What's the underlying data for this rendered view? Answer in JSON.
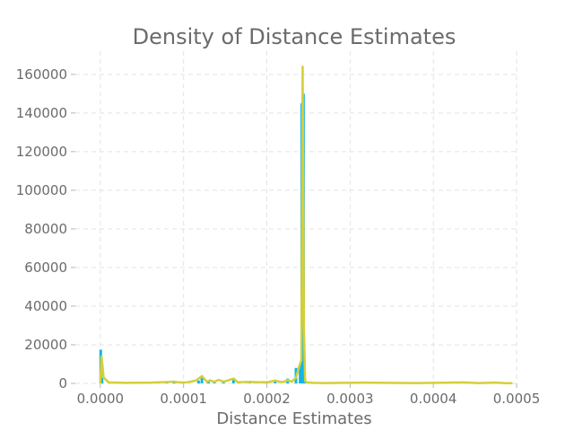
{
  "chart_data": {
    "type": "area",
    "title": "Density of Distance Estimates",
    "xlabel": "Distance Estimates",
    "ylabel": "",
    "xlim": [
      -3e-05,
      0.0005
    ],
    "ylim": [
      0,
      172000
    ],
    "x_ticks": [
      0.0,
      0.0001,
      0.0002,
      0.0003,
      0.0004,
      0.0005
    ],
    "x_tick_labels": [
      "0.0000",
      "0.0001",
      "0.0002",
      "0.0003",
      "0.0004",
      "0.0005"
    ],
    "y_ticks": [
      0,
      20000,
      40000,
      60000,
      80000,
      100000,
      120000,
      140000,
      160000
    ],
    "y_tick_labels": [
      "0",
      "20000",
      "40000",
      "60000",
      "80000",
      "100000",
      "120000",
      "140000",
      "160000"
    ],
    "grid": true,
    "colors": {
      "histogram": "#13b5ea",
      "density": "#d4cf3a"
    },
    "series": [
      {
        "kind": "histogram",
        "x": [
          5e-07,
          2e-06,
          4.5e-05,
          6e-05,
          8e-05,
          8.85e-05,
          0.0001,
          0.000118,
          0.000122,
          0.00013,
          0.000137,
          0.000148,
          0.00016,
          0.00018,
          0.0002,
          0.00021,
          0.000225,
          0.000235,
          0.00024,
          0.000242,
          0.000243,
          0.000244,
          0.000246,
          0.00025,
          0.00028,
          0.00032
        ],
        "y": [
          17500,
          3000,
          300,
          400,
          600,
          900,
          800,
          1500,
          3500,
          800,
          1000,
          1500,
          2800,
          600,
          800,
          1500,
          2500,
          8000,
          10000,
          145000,
          140000,
          150000,
          1500,
          500,
          300,
          200
        ]
      },
      {
        "kind": "density",
        "x": [
          0.0,
          1.5e-06,
          4e-06,
          1e-05,
          3e-05,
          6e-05,
          8e-05,
          8.85e-05,
          9.5e-05,
          0.000105,
          0.000115,
          0.000122,
          0.000128,
          0.000132,
          0.000137,
          0.000142,
          0.000148,
          0.000153,
          0.00016,
          0.000165,
          0.00018,
          0.00019,
          0.000202,
          0.00021,
          0.000215,
          0.00022,
          0.000225,
          0.00023,
          0.000235,
          0.000239,
          0.0002415,
          0.000243,
          0.0002445,
          0.000246,
          0.000248,
          0.000255,
          0.00027,
          0.00032,
          0.000345,
          0.00038,
          0.000435,
          0.000455,
          0.000475,
          0.000485,
          0.000495
        ],
        "y": [
          0,
          14000,
          3000,
          500,
          300,
          400,
          700,
          900,
          500,
          600,
          1500,
          3800,
          900,
          1600,
          800,
          1800,
          900,
          1500,
          2500,
          600,
          800,
          600,
          700,
          1500,
          900,
          700,
          1700,
          900,
          3000,
          9000,
          12000,
          164000,
          30000,
          1200,
          500,
          300,
          200,
          400,
          300,
          200,
          500,
          200,
          400,
          200,
          100
        ]
      }
    ]
  }
}
